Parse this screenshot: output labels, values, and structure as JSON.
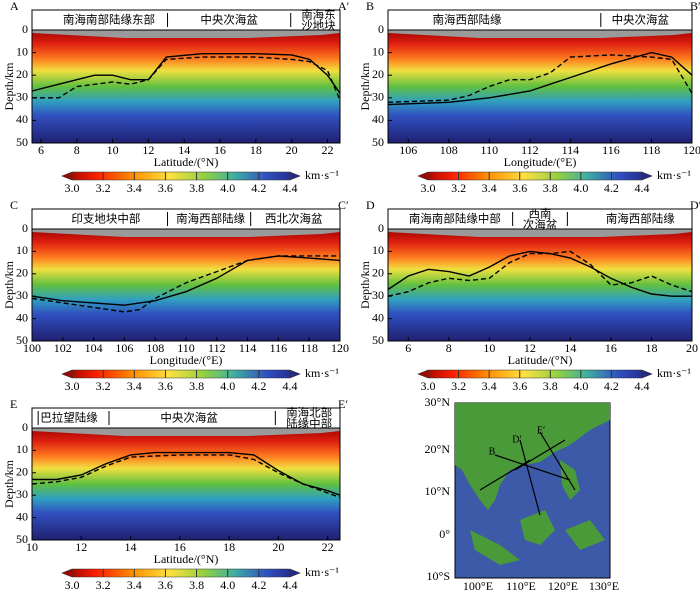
{
  "chart_data": [
    {
      "type": "line",
      "start_label": "A",
      "end_label": "A′",
      "regions": [
        "南海南部陆缘东部",
        "中央次海盆",
        [
          "南海东",
          "沙地块"
        ]
      ],
      "xlabel": "Latitude/(°N)",
      "ylabel": "Depth/km",
      "xlim": [
        5.5,
        22.7
      ],
      "xticks": [
        6,
        8,
        10,
        12,
        14,
        16,
        18,
        20,
        22
      ],
      "ylim": [
        0,
        50
      ],
      "yticks": [
        0,
        10,
        20,
        30,
        40,
        50
      ],
      "y_inverted": true,
      "series": [
        {
          "color": "#000000",
          "dashed": false,
          "x": [
            5.5,
            7,
            9,
            10,
            11,
            12,
            13,
            15,
            18,
            20,
            21,
            22,
            22.7
          ],
          "values": [
            27,
            24,
            20,
            20,
            22,
            22,
            12,
            10.5,
            10.5,
            11,
            13,
            20,
            28
          ]
        },
        {
          "color": "#000000",
          "dashed": true,
          "x": [
            5.5,
            7,
            8,
            10,
            11,
            12,
            13,
            15,
            18,
            20,
            21,
            22,
            22.7
          ],
          "values": [
            30,
            30,
            25,
            23,
            24,
            22,
            13,
            12,
            12,
            13,
            14,
            18,
            31
          ]
        }
      ]
    },
    {
      "type": "line",
      "start_label": "B",
      "end_label": "B′",
      "regions": [
        "南海西部陆缘",
        "中央次海盆"
      ],
      "xlabel": "Longitude/(°E)",
      "ylabel": "Depth/km",
      "xlim": [
        105,
        120
      ],
      "xticks": [
        106,
        108,
        110,
        112,
        114,
        116,
        118,
        120
      ],
      "ylim": [
        0,
        50
      ],
      "yticks": [
        0,
        10,
        20,
        30,
        40,
        50
      ],
      "y_inverted": true,
      "series": [
        {
          "color": "#000000",
          "dashed": false,
          "x": [
            105,
            108,
            110,
            112,
            113,
            114,
            116,
            118,
            119,
            120
          ],
          "values": [
            33,
            32,
            30,
            27,
            24,
            21,
            15,
            10,
            12,
            20
          ]
        },
        {
          "color": "#000000",
          "dashed": true,
          "x": [
            105,
            108,
            109,
            110,
            111,
            112,
            113,
            114,
            116,
            118,
            119,
            120
          ],
          "values": [
            32,
            31,
            29,
            25,
            22,
            22,
            19,
            12,
            11,
            12,
            13,
            28
          ]
        }
      ]
    },
    {
      "type": "line",
      "start_label": "C",
      "end_label": "C′",
      "regions": [
        "印支地块中部",
        "南海西部陆缘",
        "西北次海盆"
      ],
      "xlabel": "Longitude/(°E)",
      "ylabel": "Depth/km",
      "xlim": [
        100,
        120
      ],
      "xticks": [
        100,
        102,
        104,
        106,
        108,
        110,
        112,
        114,
        116,
        118,
        120
      ],
      "ylim": [
        0,
        50
      ],
      "yticks": [
        0,
        10,
        20,
        30,
        40,
        50
      ],
      "y_inverted": true,
      "series": [
        {
          "color": "#000000",
          "dashed": false,
          "x": [
            100,
            102,
            104,
            106,
            108,
            110,
            112,
            114,
            116,
            118,
            120
          ],
          "values": [
            30,
            32,
            33,
            34,
            32,
            28,
            22,
            14,
            12,
            13,
            14
          ]
        },
        {
          "color": "#000000",
          "dashed": true,
          "x": [
            100,
            102,
            104,
            106,
            107,
            108,
            110,
            112,
            114,
            116,
            118,
            120
          ],
          "values": [
            31,
            33,
            35,
            37,
            36,
            31,
            24,
            19,
            14,
            12,
            12,
            12
          ]
        }
      ]
    },
    {
      "type": "line",
      "start_label": "D",
      "end_label": "D′",
      "regions": [
        "南海南部陆缘中部",
        [
          "西南",
          "次海盆"
        ],
        "南海西部陆缘"
      ],
      "xlabel": "Latitude/(°N)",
      "ylabel": "Depth/km",
      "xlim": [
        5,
        20
      ],
      "xticks": [
        6,
        8,
        10,
        12,
        14,
        16,
        18,
        20
      ],
      "ylim": [
        0,
        50
      ],
      "yticks": [
        0,
        10,
        20,
        30,
        40,
        50
      ],
      "y_inverted": true,
      "series": [
        {
          "color": "#000000",
          "dashed": false,
          "x": [
            5,
            6,
            7,
            8,
            9,
            10,
            11,
            12,
            13,
            14,
            15,
            16,
            17,
            18,
            19,
            20
          ],
          "values": [
            27,
            21,
            18,
            19,
            21,
            17,
            12,
            10,
            11,
            13,
            17,
            22,
            26,
            29,
            30,
            30
          ]
        },
        {
          "color": "#000000",
          "dashed": true,
          "x": [
            5,
            6,
            7,
            8,
            9,
            10,
            11,
            12,
            13,
            14,
            15,
            16,
            17,
            18,
            19,
            20
          ],
          "values": [
            30,
            28,
            24,
            22,
            23,
            22,
            15,
            11,
            11,
            10,
            16,
            25,
            24,
            21,
            25,
            28
          ]
        }
      ]
    },
    {
      "type": "line",
      "start_label": "E",
      "end_label": "E′",
      "regions": [
        "巴拉望陆缘",
        "中央次海盆",
        [
          "南海北部",
          "陆缘中部"
        ]
      ],
      "xlabel": "Latitude/(°N)",
      "ylabel": "Depth/km",
      "xlim": [
        10,
        22.5
      ],
      "xticks": [
        10,
        12,
        14,
        16,
        18,
        20,
        22
      ],
      "ylim": [
        0,
        50
      ],
      "yticks": [
        0,
        10,
        20,
        30,
        40,
        50
      ],
      "y_inverted": true,
      "series": [
        {
          "color": "#000000",
          "dashed": false,
          "x": [
            10,
            11,
            12,
            13,
            14,
            15,
            17,
            18,
            19,
            20,
            21,
            22,
            22.5
          ],
          "values": [
            23,
            23,
            21,
            16,
            12,
            11,
            11,
            11,
            12,
            19,
            25,
            28,
            30
          ]
        },
        {
          "color": "#000000",
          "dashed": true,
          "x": [
            10,
            11,
            12,
            13,
            14,
            16,
            18,
            19,
            20,
            21,
            22,
            22.5
          ],
          "values": [
            25,
            24,
            22,
            17,
            13,
            12,
            12,
            14,
            20,
            25,
            29,
            31
          ]
        }
      ]
    }
  ],
  "colorbar": {
    "unit": "km·s⁻¹",
    "lim": [
      3,
      4.4
    ],
    "ticks": [
      {
        "value": 3,
        "label": "3.0"
      },
      {
        "value": 3.2,
        "label": "3.2"
      },
      {
        "value": 3.4,
        "label": "3.4"
      },
      {
        "value": 3.6,
        "label": "3.6"
      },
      {
        "value": 3.8,
        "label": "3.8"
      },
      {
        "value": 4,
        "label": "4.0"
      },
      {
        "value": 4.2,
        "label": "4.2"
      },
      {
        "value": 4.4,
        "label": "4.4"
      }
    ]
  },
  "map": {
    "lat_labels": [
      "30°N",
      "20°N",
      "10°N",
      "0°",
      "10°S"
    ],
    "lon_labels": [
      "100°E",
      "110°E",
      "120°E",
      "130°E"
    ],
    "profile_labels": [
      "B",
      "D′",
      "E′"
    ]
  }
}
